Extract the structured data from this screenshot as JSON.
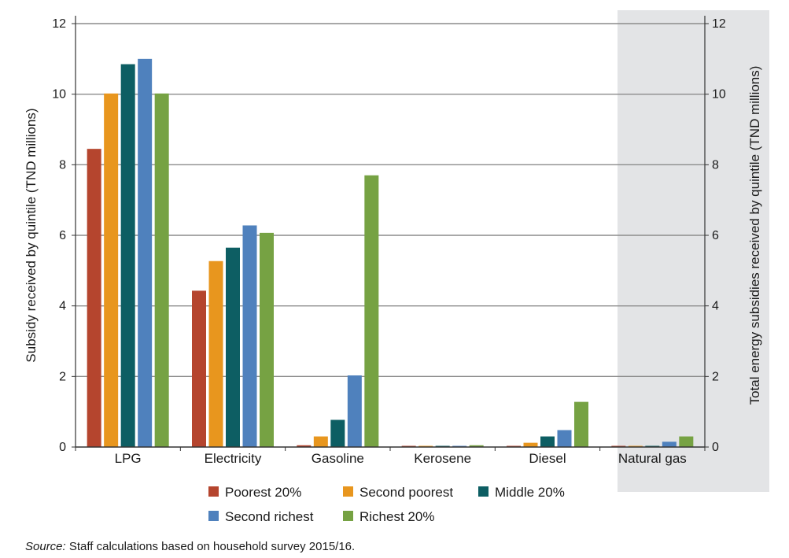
{
  "chart_data": {
    "type": "bar",
    "categories": [
      "LPG",
      "Electricity",
      "Gasoline",
      "Kerosene",
      "Diesel",
      "Natural gas"
    ],
    "series": [
      {
        "name": "Poorest 20%",
        "color": "#b5452e",
        "values": [
          8.45,
          4.43,
          0.05,
          0.02,
          0.03,
          0.03
        ]
      },
      {
        "name": "Second poorest",
        "color": "#e8961e",
        "values": [
          10.02,
          5.27,
          0.3,
          0.02,
          0.12,
          0.03
        ]
      },
      {
        "name": "Middle 20%",
        "color": "#0d5e63",
        "values": [
          10.85,
          5.65,
          0.77,
          0.02,
          0.3,
          0.03
        ]
      },
      {
        "name": "Second richest",
        "color": "#4f81bd",
        "values": [
          11.0,
          6.28,
          2.03,
          0.03,
          0.48,
          0.15
        ]
      },
      {
        "name": "Richest 20%",
        "color": "#76a243",
        "values": [
          10.02,
          6.07,
          7.7,
          0.05,
          1.28,
          0.3
        ]
      }
    ],
    "ylabel": "Subsidy received by quintile (TND millions)",
    "y2label": "Total energy subsidies received by quintile (TND millions)",
    "ylim": [
      0,
      12
    ],
    "yticks": [
      "0",
      "2",
      "4",
      "6",
      "8",
      "10",
      "12"
    ],
    "y2ticks": [
      "0",
      "2",
      "4",
      "6",
      "8",
      "10",
      "12"
    ],
    "grid": true,
    "highlighted_category": "Natural gas",
    "highlight_color": "#e3e4e6",
    "legend_position": "bottom",
    "source_label": "Source:",
    "source_text": " Staff calculations based on household survey 2015/16."
  }
}
